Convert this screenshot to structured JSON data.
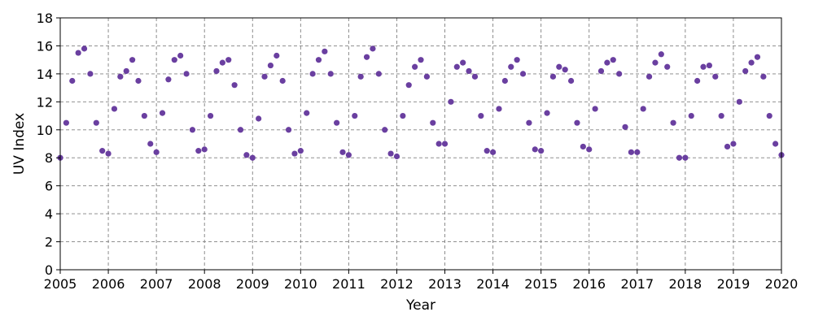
{
  "chart_data": {
    "type": "scatter",
    "xlabel": "Year",
    "ylabel": "UV Index",
    "xlim": [
      2005,
      2020
    ],
    "ylim": [
      0,
      18
    ],
    "x_ticks": [
      "2005",
      "2006",
      "2007",
      "2008",
      "2009",
      "2010",
      "2011",
      "2012",
      "2013",
      "2014",
      "2015",
      "2016",
      "2017",
      "2018",
      "2019",
      "2020"
    ],
    "y_ticks": [
      "0",
      "2",
      "4",
      "6",
      "8",
      "10",
      "12",
      "14",
      "16",
      "18"
    ],
    "grid": true,
    "marker_color": "#6a3fa0",
    "series": [
      {
        "points_per_year": 8,
        "x": [
          2005.0,
          2005.125,
          2005.25,
          2005.375,
          2005.5,
          2005.625,
          2005.75,
          2005.875,
          2006.0,
          2006.125,
          2006.25,
          2006.375,
          2006.5,
          2006.625,
          2006.75,
          2006.875,
          2007.0,
          2007.125,
          2007.25,
          2007.375,
          2007.5,
          2007.625,
          2007.75,
          2007.875,
          2008.0,
          2008.125,
          2008.25,
          2008.375,
          2008.5,
          2008.625,
          2008.75,
          2008.875,
          2009.0,
          2009.125,
          2009.25,
          2009.375,
          2009.5,
          2009.625,
          2009.75,
          2009.875,
          2010.0,
          2010.125,
          2010.25,
          2010.375,
          2010.5,
          2010.625,
          2010.75,
          2010.875,
          2011.0,
          2011.125,
          2011.25,
          2011.375,
          2011.5,
          2011.625,
          2011.75,
          2011.875,
          2012.0,
          2012.125,
          2012.25,
          2012.375,
          2012.5,
          2012.625,
          2012.75,
          2012.875,
          2013.0,
          2013.125,
          2013.25,
          2013.375,
          2013.5,
          2013.625,
          2013.75,
          2013.875,
          2014.0,
          2014.125,
          2014.25,
          2014.375,
          2014.5,
          2014.625,
          2014.75,
          2014.875,
          2015.0,
          2015.125,
          2015.25,
          2015.375,
          2015.5,
          2015.625,
          2015.75,
          2015.875,
          2016.0,
          2016.125,
          2016.25,
          2016.375,
          2016.5,
          2016.625,
          2016.75,
          2016.875,
          2017.0,
          2017.125,
          2017.25,
          2017.375,
          2017.5,
          2017.625,
          2017.75,
          2017.875,
          2018.0,
          2018.125,
          2018.25,
          2018.375,
          2018.5,
          2018.625,
          2018.75,
          2018.875,
          2019.0,
          2019.125,
          2019.25,
          2019.375,
          2019.5,
          2019.625,
          2019.75,
          2019.875,
          2020.0
        ],
        "y": [
          8.0,
          10.5,
          13.5,
          15.5,
          15.8,
          14.0,
          10.5,
          8.5,
          8.3,
          11.5,
          13.8,
          14.2,
          15.0,
          13.5,
          11.0,
          9.0,
          8.4,
          11.2,
          13.6,
          15.0,
          15.3,
          14.0,
          10.0,
          8.5,
          8.6,
          11.0,
          14.2,
          14.8,
          15.0,
          13.2,
          10.0,
          8.2,
          8.0,
          10.8,
          13.8,
          14.6,
          15.3,
          13.5,
          10.0,
          8.3,
          8.5,
          11.2,
          14.0,
          15.0,
          15.6,
          14.0,
          10.5,
          8.4,
          8.2,
          11.0,
          13.8,
          15.2,
          15.8,
          14.0,
          10.0,
          8.3,
          8.1,
          11.0,
          13.2,
          14.5,
          15.0,
          13.8,
          10.5,
          9.0,
          9.0,
          12.0,
          14.5,
          14.8,
          14.2,
          13.8,
          11.0,
          8.5,
          8.4,
          11.5,
          13.5,
          14.5,
          15.0,
          14.0,
          10.5,
          8.6,
          8.5,
          11.2,
          13.8,
          14.5,
          14.3,
          13.5,
          10.5,
          8.8,
          8.6,
          11.5,
          14.2,
          14.8,
          15.0,
          14.0,
          10.2,
          8.4,
          8.4,
          11.5,
          13.8,
          14.8,
          15.4,
          14.5,
          10.5,
          8.0,
          8.0,
          11.0,
          13.5,
          14.5,
          14.6,
          13.8,
          11.0,
          8.8,
          9.0,
          12.0,
          14.2,
          14.8,
          15.2,
          13.8,
          11.0,
          9.0,
          8.2
        ]
      }
    ]
  }
}
